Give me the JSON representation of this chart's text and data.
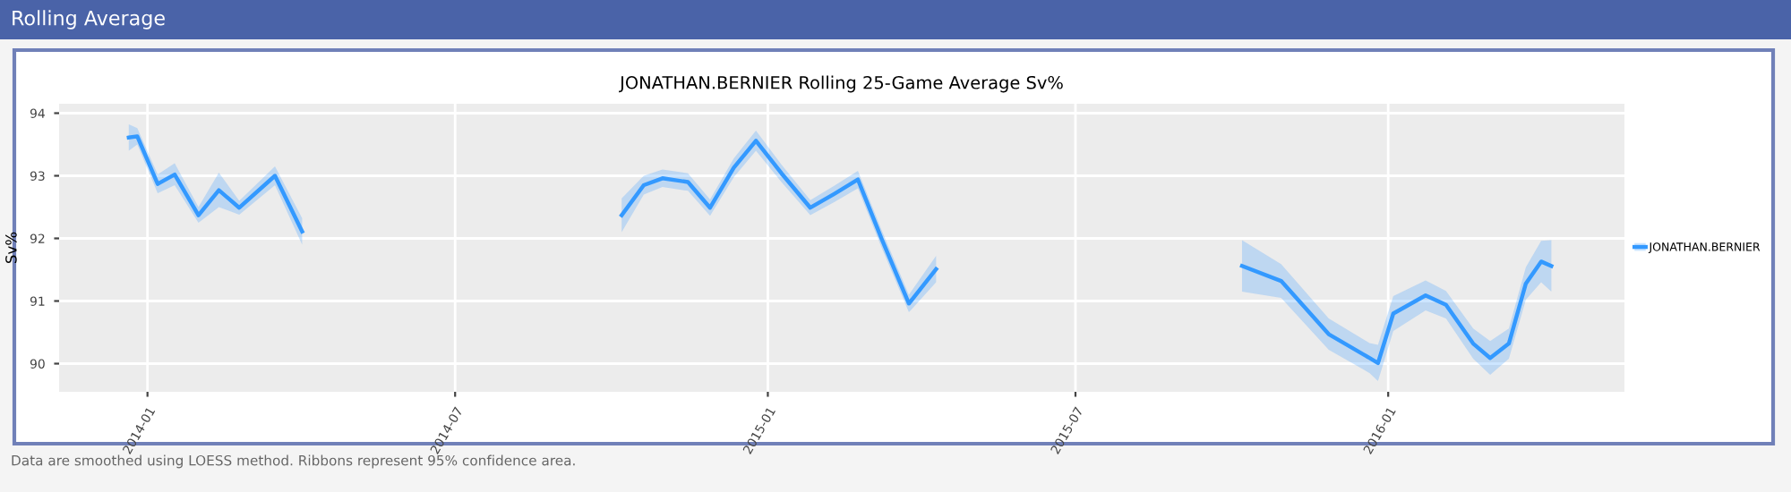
{
  "chart_data": {
    "type": "line",
    "title": "JONATHAN.BERNIER Rolling 25-Game Average Sv%",
    "ylabel": "Sv%",
    "annotations": [
      "Rolling Average",
      "Data are smoothed using LOESS method. Ribbons represent 95% confidence area."
    ],
    "x": [
      "2013-12-21",
      "2013-12-26",
      "2014-01-07",
      "2014-01-17",
      "2014-01-31",
      "2014-02-12",
      "2014-02-24",
      "2014-03-17",
      "2014-04-02",
      "2014-07-01",
      "2014-10-07",
      "2014-10-20",
      "2014-10-31",
      "2014-11-15",
      "2014-11-28",
      "2014-12-12",
      "2014-12-25",
      "2015-01-09",
      "2015-01-26",
      "2015-02-09",
      "2015-02-23",
      "2015-03-09",
      "2015-03-25",
      "2015-04-10",
      "2015-07-01",
      "2015-10-07",
      "2015-10-30",
      "2015-11-27",
      "2015-12-21",
      "2015-12-26",
      "2016-01-04",
      "2016-01-23",
      "2016-02-04",
      "2016-02-20",
      "2016-03-01",
      "2016-03-12",
      "2016-03-22",
      "2016-03-31",
      "2016-04-06"
    ],
    "series": [
      {
        "name": "JONATHAN.BERNIER",
        "color": "#3399ff",
        "values": [
          93.61,
          93.63,
          92.87,
          93.02,
          92.37,
          92.77,
          92.49,
          93.0,
          92.11,
          null,
          92.37,
          92.85,
          92.96,
          92.9,
          92.49,
          93.13,
          93.56,
          93.04,
          92.49,
          92.71,
          92.94,
          91.99,
          90.96,
          91.51,
          null,
          91.56,
          91.32,
          90.47,
          90.09,
          90.01,
          90.8,
          91.09,
          90.94,
          90.32,
          90.09,
          90.32,
          91.28,
          91.63,
          91.56
        ],
        "lower": [
          93.4,
          93.5,
          92.72,
          92.85,
          92.25,
          92.5,
          92.38,
          92.85,
          91.9,
          null,
          92.1,
          92.7,
          92.82,
          92.76,
          92.36,
          92.98,
          93.4,
          92.9,
          92.37,
          92.58,
          92.8,
          91.85,
          90.82,
          91.3,
          null,
          91.15,
          91.05,
          90.22,
          89.85,
          89.72,
          90.52,
          90.85,
          90.72,
          90.08,
          89.82,
          90.08,
          91.02,
          91.3,
          91.15
        ],
        "upper": [
          93.82,
          93.76,
          93.02,
          93.2,
          92.5,
          93.05,
          92.6,
          93.15,
          92.32,
          null,
          92.64,
          93.0,
          93.1,
          93.04,
          92.62,
          93.28,
          93.72,
          93.18,
          92.61,
          92.84,
          93.08,
          92.13,
          91.1,
          91.72,
          null,
          91.97,
          91.59,
          90.72,
          90.33,
          90.3,
          91.08,
          91.33,
          91.16,
          90.56,
          90.36,
          90.56,
          91.54,
          91.96,
          91.97
        ]
      }
    ],
    "xlim": [
      "2013-11-10",
      "2016-05-19"
    ],
    "xticks": [
      "2014-01",
      "2014-07",
      "2015-01",
      "2015-07",
      "2016-01"
    ],
    "ylim": [
      89.55,
      94.15
    ],
    "yticks": [
      90,
      91,
      92,
      93,
      94
    ],
    "grid": true,
    "legend": "right",
    "line_style": "solid",
    "marker": "none"
  }
}
